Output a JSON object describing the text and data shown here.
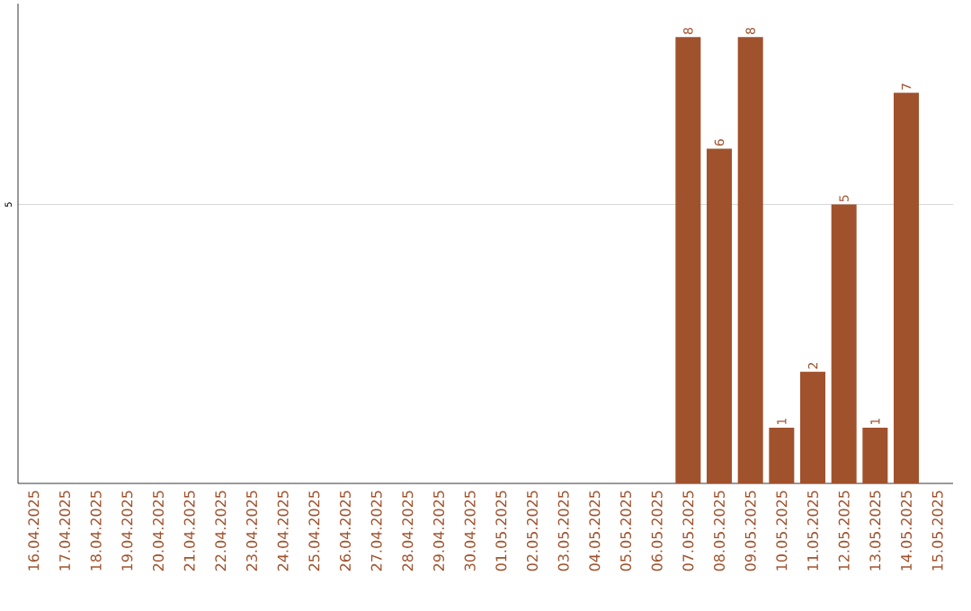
{
  "chart_data": {
    "type": "bar",
    "categories": [
      "16.04.2025",
      "17.04.2025",
      "18.04.2025",
      "19.04.2025",
      "20.04.2025",
      "21.04.2025",
      "22.04.2025",
      "23.04.2025",
      "24.04.2025",
      "25.04.2025",
      "26.04.2025",
      "27.04.2025",
      "28.04.2025",
      "29.04.2025",
      "30.04.2025",
      "01.05.2025",
      "02.05.2025",
      "03.05.2025",
      "04.05.2025",
      "05.05.2025",
      "06.05.2025",
      "07.05.2025",
      "08.05.2025",
      "09.05.2025",
      "10.05.2025",
      "11.05.2025",
      "12.05.2025",
      "13.05.2025",
      "14.05.2025",
      "15.05.2025"
    ],
    "values": [
      null,
      null,
      null,
      null,
      null,
      null,
      null,
      null,
      null,
      null,
      null,
      null,
      null,
      null,
      null,
      null,
      null,
      null,
      null,
      null,
      null,
      8,
      6,
      8,
      1,
      2,
      5,
      1,
      7,
      null
    ],
    "data_labels": true,
    "color": "#a0522d",
    "ylim": [
      0,
      8.6
    ],
    "yticks": [
      5
    ],
    "grid": "y"
  }
}
